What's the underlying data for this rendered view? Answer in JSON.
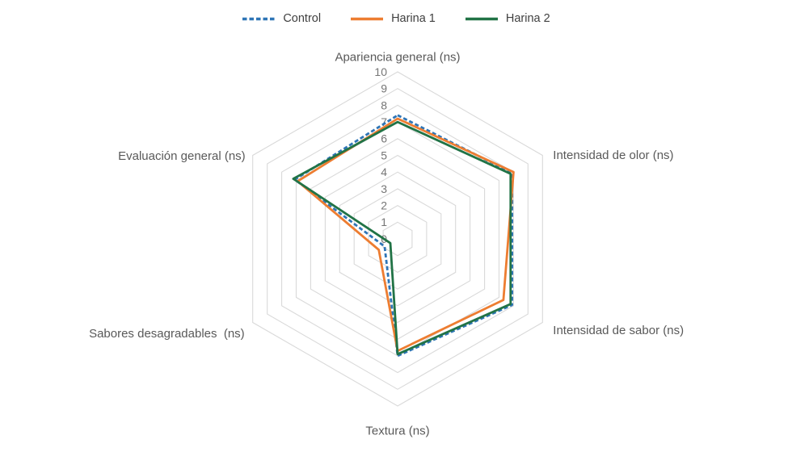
{
  "chart_data": {
    "type": "radar",
    "title": "",
    "categories": [
      "Apariencia general (ns)",
      "Intensidad de olor (ns)",
      "Intensidad de sabor (ns)",
      "Textura (ns)",
      "Sabores desagradables  (ns)",
      "Evaluación general (ns)"
    ],
    "axis": {
      "min": 0,
      "max": 10,
      "step": 1,
      "tick_labels": [
        "10",
        "9",
        "8",
        "7",
        "6",
        "5",
        "4",
        "3",
        "2",
        "1",
        "0"
      ]
    },
    "grid": "concentric-hexagons",
    "legend_position": "top",
    "series": [
      {
        "name": "Control",
        "color": "#2E75B6",
        "style": "dashed",
        "values": [
          7.4,
          7.9,
          7.9,
          7.0,
          0.9,
          7.1
        ]
      },
      {
        "name": "Harina 1",
        "color": "#ED7D31",
        "style": "solid",
        "values": [
          7.2,
          8.0,
          7.3,
          6.7,
          1.3,
          6.9
        ]
      },
      {
        "name": "Harina 2",
        "color": "#217346",
        "style": "solid",
        "values": [
          7.0,
          7.8,
          7.8,
          6.9,
          0.5,
          7.2
        ]
      }
    ]
  },
  "colors": {
    "background": "#FFFFFF",
    "grid_line": "#D9D9D9",
    "tick_text": "#757575",
    "category_text": "#595959",
    "legend_text": "#404040"
  }
}
